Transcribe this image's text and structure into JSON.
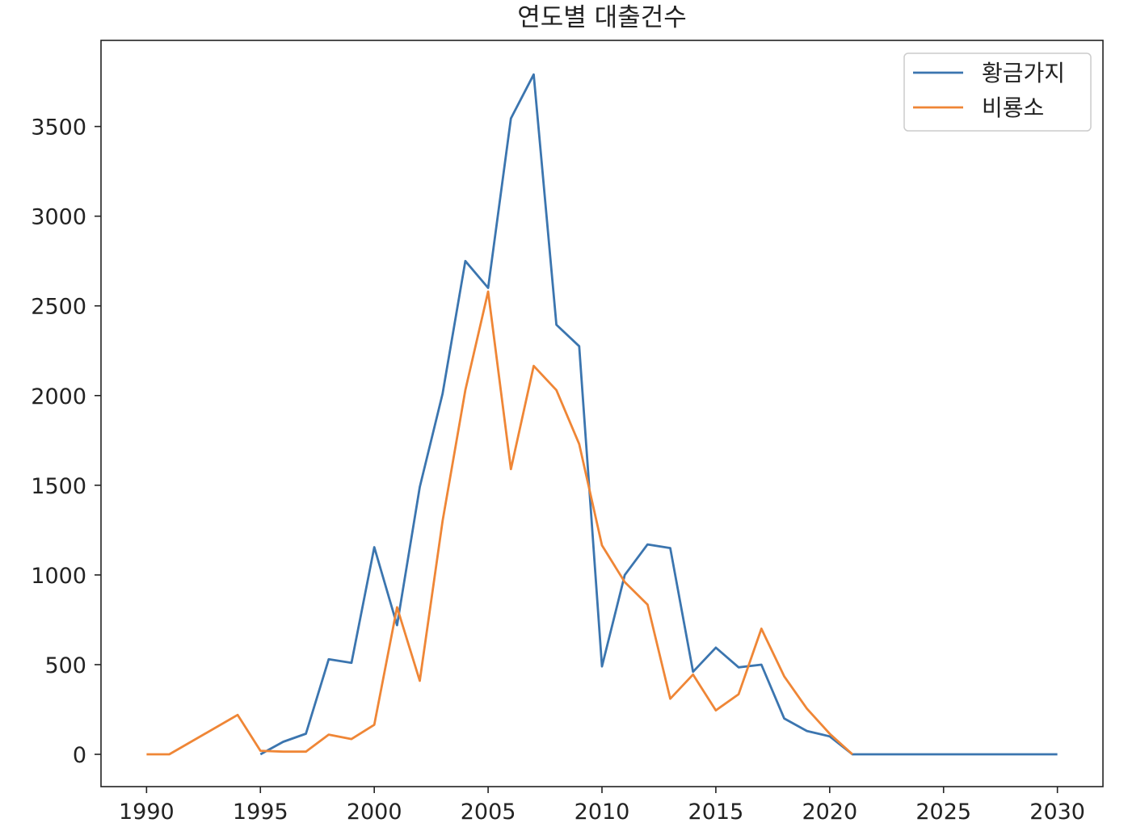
{
  "chart_data": {
    "type": "line",
    "title": "연도별 대출건수",
    "xlabel": "",
    "ylabel": "",
    "xlim": [
      1988,
      2032
    ],
    "ylim": [
      -180,
      3980
    ],
    "xticks": [
      1990,
      1995,
      2000,
      2005,
      2010,
      2015,
      2020,
      2025,
      2030
    ],
    "yticks": [
      0,
      500,
      1000,
      1500,
      2000,
      2500,
      3000,
      3500
    ],
    "grid": false,
    "legend": "top-right",
    "series": [
      {
        "name": "황금가지",
        "color": "#3b75af",
        "x": [
          1995,
          1996,
          1997,
          1998,
          1999,
          2000,
          2001,
          2002,
          2003,
          2004,
          2005,
          2006,
          2007,
          2008,
          2009,
          2010,
          2011,
          2012,
          2013,
          2014,
          2015,
          2016,
          2017,
          2018,
          2019,
          2020,
          2021,
          2022,
          2023,
          2024,
          2025,
          2026,
          2027,
          2028,
          2029,
          2030
        ],
        "y": [
          0,
          70,
          115,
          530,
          510,
          1155,
          720,
          1490,
          2010,
          2750,
          2600,
          3545,
          3790,
          2395,
          2275,
          490,
          1000,
          1170,
          1150,
          460,
          595,
          485,
          500,
          200,
          130,
          100,
          0,
          0,
          0,
          0,
          0,
          0,
          0,
          0,
          0,
          0
        ]
      },
      {
        "name": "비룡소",
        "color": "#ef8636",
        "x": [
          1990,
          1991,
          1994,
          1995,
          1996,
          1997,
          1998,
          1999,
          2000,
          2001,
          2002,
          2003,
          2004,
          2005,
          2006,
          2007,
          2008,
          2009,
          2010,
          2011,
          2012,
          2013,
          2014,
          2015,
          2016,
          2017,
          2018,
          2019,
          2020,
          2021
        ],
        "y": [
          0,
          0,
          220,
          20,
          15,
          15,
          110,
          85,
          165,
          820,
          410,
          1300,
          2030,
          2580,
          1590,
          2165,
          2030,
          1730,
          1165,
          960,
          835,
          310,
          445,
          245,
          335,
          700,
          435,
          255,
          115,
          0
        ]
      }
    ]
  }
}
